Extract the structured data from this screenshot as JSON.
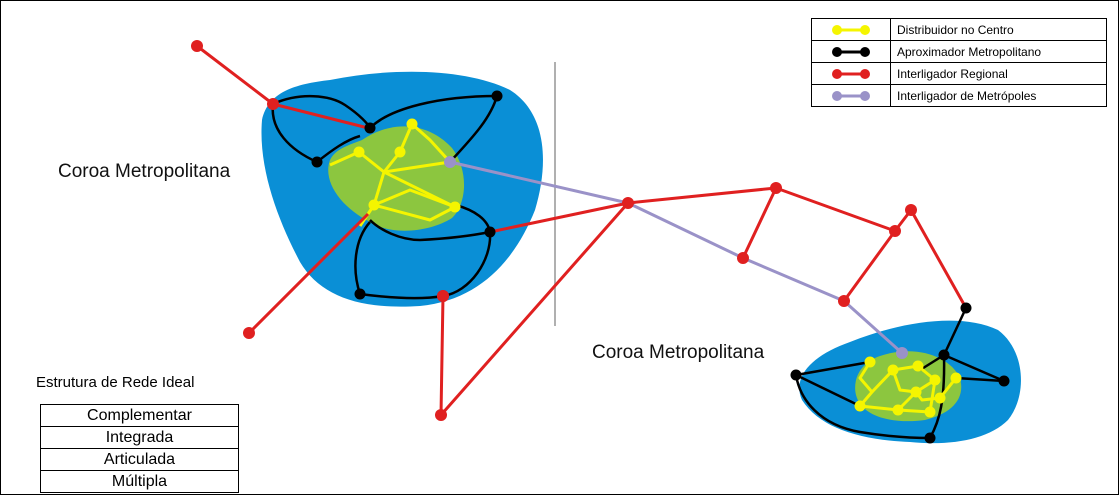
{
  "labels": {
    "crown_left": "Coroa Metropolitana",
    "crown_right": "Coroa Metropolitana"
  },
  "legend": [
    {
      "label": "Distribuidor no Centro",
      "color": "#f5f500",
      "icon": "yellow-line-node-icon"
    },
    {
      "label": "Aproximador Metropolitano",
      "color": "#000000",
      "icon": "black-line-node-icon"
    },
    {
      "label": "Interligador Regional",
      "color": "#e02020",
      "icon": "red-line-node-icon"
    },
    {
      "label": "Interligador de Metrópoles",
      "color": "#9a92c8",
      "icon": "purple-line-node-icon"
    }
  ],
  "structure": {
    "title": "Estrutura de Rede Ideal",
    "items": [
      "Complementar",
      "Integrada",
      "Articulada",
      "Múltipla"
    ]
  },
  "colors": {
    "metro_blue": "#0a8fd6",
    "center_green": "#8cc63f",
    "distributor": "#f5f500",
    "approximator": "#000000",
    "regional": "#e02020",
    "metropole_link": "#9a92c8",
    "divider": "#b0b0b0"
  }
}
